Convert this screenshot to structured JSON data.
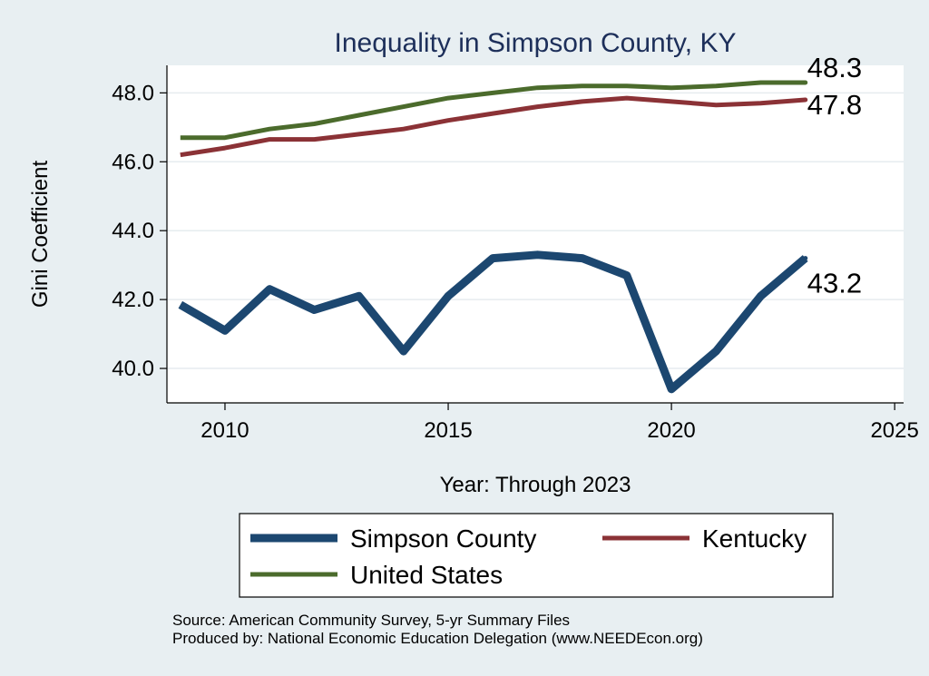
{
  "chart_data": {
    "type": "line",
    "title": "Inequality in Simpson County, KY",
    "xlabel": "Year: Through 2023",
    "ylabel": "Gini Coefficient",
    "xlim": [
      2008.7,
      2025.2
    ],
    "ylim": [
      39.0,
      48.8
    ],
    "xticks": [
      2010,
      2015,
      2020,
      2025
    ],
    "yticks": [
      40.0,
      42.0,
      44.0,
      46.0,
      48.0
    ],
    "ytick_labels": [
      "40.0",
      "42.0",
      "44.0",
      "46.0",
      "48.0"
    ],
    "grid": true,
    "x": [
      2009,
      2010,
      2011,
      2012,
      2013,
      2014,
      2015,
      2016,
      2017,
      2018,
      2019,
      2020,
      2021,
      2022,
      2023
    ],
    "series": [
      {
        "name": "Simpson County",
        "color": "#1c4770",
        "values": [
          41.85,
          41.1,
          42.3,
          41.7,
          42.1,
          40.5,
          42.1,
          43.2,
          43.3,
          43.2,
          42.7,
          39.4,
          40.5,
          42.1,
          43.2
        ],
        "end_label": "43.2"
      },
      {
        "name": "Kentucky",
        "color": "#8b3236",
        "values": [
          46.2,
          46.4,
          46.65,
          46.65,
          46.8,
          46.95,
          47.2,
          47.4,
          47.6,
          47.75,
          47.85,
          47.75,
          47.65,
          47.7,
          47.8
        ],
        "end_label": "47.8"
      },
      {
        "name": "United States",
        "color": "#4b6b2c",
        "values": [
          46.7,
          46.7,
          46.95,
          47.1,
          47.35,
          47.6,
          47.85,
          48.0,
          48.15,
          48.2,
          48.2,
          48.15,
          48.2,
          48.3,
          48.3
        ],
        "end_label": "48.3"
      }
    ],
    "legend": {
      "placement": "bottom",
      "entries": [
        "Simpson County",
        "Kentucky",
        "United States"
      ]
    }
  },
  "source_lines": [
    "Source: American Community Survey, 5-yr Summary Files",
    "Produced by: National Economic Education Delegation (www.NEEDEcon.org)"
  ]
}
